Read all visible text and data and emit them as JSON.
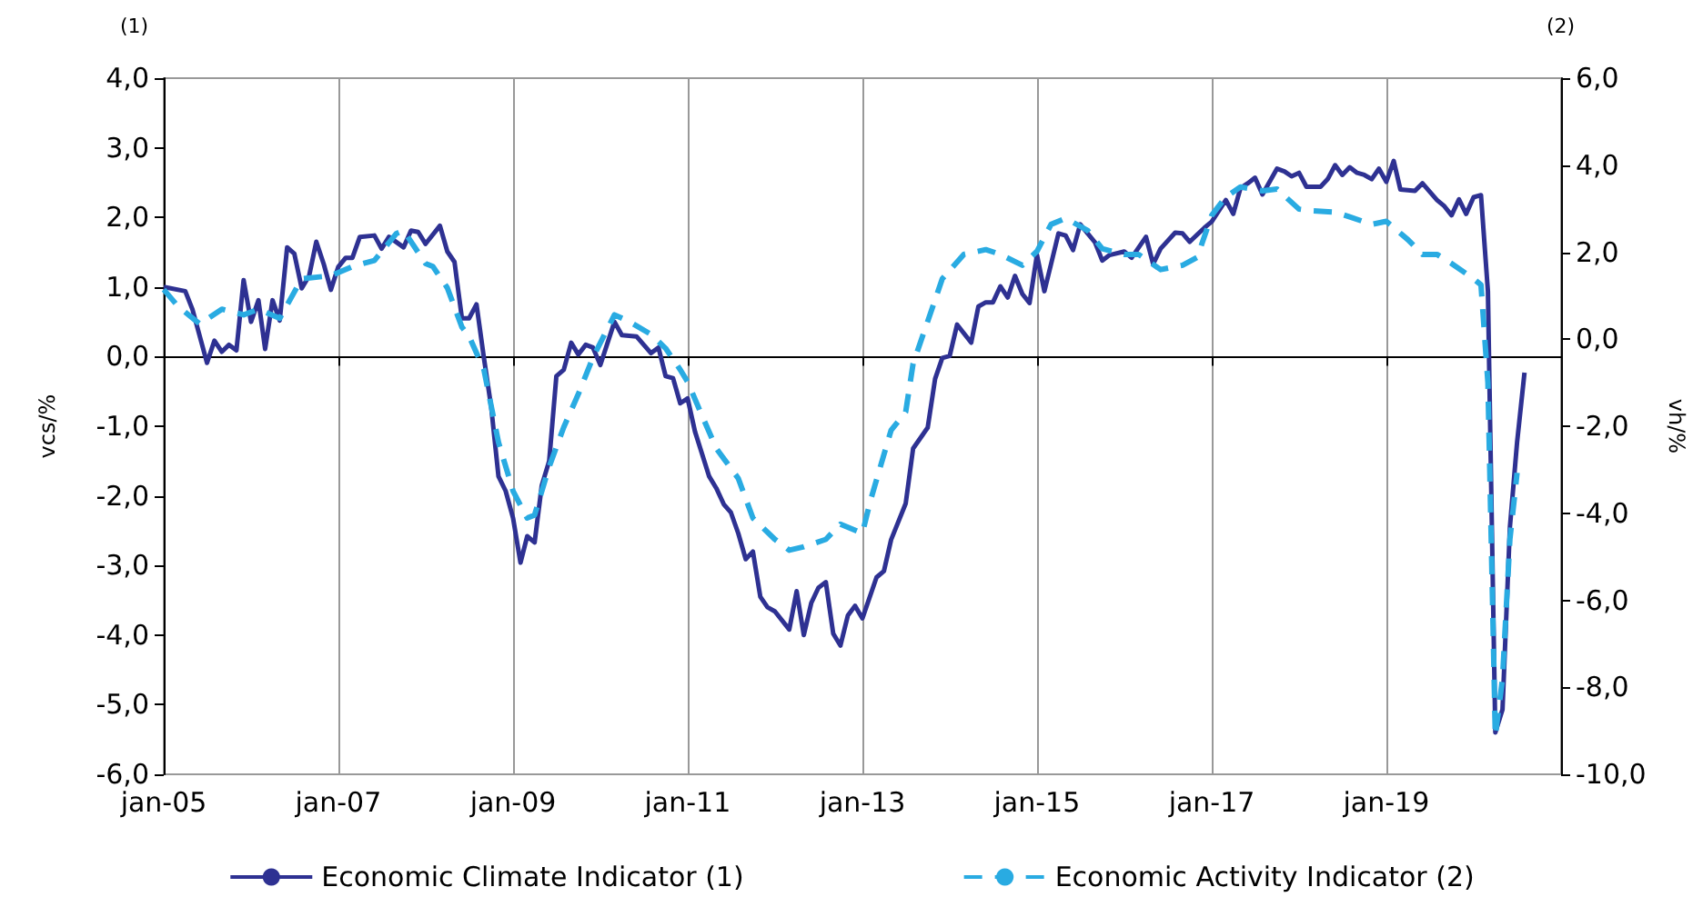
{
  "chart_data": {
    "type": "line",
    "ylabel": "vcs/%",
    "y2label": "vh/%",
    "annotations": [
      "(1)",
      "(2)"
    ],
    "xlim": [
      "2005-01",
      "2021-01"
    ],
    "xticks": [
      {
        "value": "2005-01",
        "label": "jan-05"
      },
      {
        "value": "2007-01",
        "label": "jan-07"
      },
      {
        "value": "2009-01",
        "label": "jan-09"
      },
      {
        "value": "2011-01",
        "label": "jan-11"
      },
      {
        "value": "2013-01",
        "label": "jan-13"
      },
      {
        "value": "2015-01",
        "label": "jan-15"
      },
      {
        "value": "2017-01",
        "label": "jan-17"
      },
      {
        "value": "2019-01",
        "label": "jan-19"
      }
    ],
    "ylim": [
      -6,
      4
    ],
    "yticks": [
      {
        "value": -6,
        "label": "-6,0"
      },
      {
        "value": -5,
        "label": "-5,0"
      },
      {
        "value": -4,
        "label": "-4,0"
      },
      {
        "value": -3,
        "label": "-3,0"
      },
      {
        "value": -2,
        "label": "-2,0"
      },
      {
        "value": -1,
        "label": "-1,0"
      },
      {
        "value": 0,
        "label": "0,0"
      },
      {
        "value": 1,
        "label": "1,0"
      },
      {
        "value": 2,
        "label": "2,0"
      },
      {
        "value": 3,
        "label": "3,0"
      },
      {
        "value": 4,
        "label": "4,0"
      }
    ],
    "y2lim": [
      -10,
      6
    ],
    "y2ticks": [
      {
        "value": -10,
        "label": "-10,0"
      },
      {
        "value": -8,
        "label": "-8,0"
      },
      {
        "value": -6,
        "label": "-6,0"
      },
      {
        "value": -4,
        "label": "-4,0"
      },
      {
        "value": -2,
        "label": "-2,0"
      },
      {
        "value": 0,
        "label": "0,0"
      },
      {
        "value": 2,
        "label": "2,0"
      },
      {
        "value": 4,
        "label": "4,0"
      },
      {
        "value": 6,
        "label": "6,0"
      }
    ],
    "grid": "x",
    "legend": "bottom",
    "marker": "none",
    "series": [
      {
        "name": "Economic Climate Indicator (1)",
        "color": "#2e3192",
        "line_style": "solid",
        "axis": "y",
        "x": [
          "2005-01",
          "2005-04",
          "2005-05",
          "2005-07",
          "2005-08",
          "2005-09",
          "2005-10",
          "2005-11",
          "2005-12",
          "2006-01",
          "2006-02",
          "2006-03",
          "2006-04",
          "2006-05",
          "2006-06",
          "2006-07",
          "2006-08",
          "2006-09",
          "2006-10",
          "2006-11",
          "2006-12",
          "2007-01",
          "2007-02",
          "2007-03",
          "2007-04",
          "2007-06",
          "2007-07",
          "2007-08",
          "2007-10",
          "2007-11",
          "2007-12",
          "2008-01",
          "2008-03",
          "2008-04",
          "2008-05",
          "2008-06",
          "2008-07",
          "2008-08",
          "2008-09",
          "2008-10",
          "2008-11",
          "2008-12",
          "2009-01",
          "2009-02",
          "2009-03",
          "2009-04",
          "2009-05",
          "2009-06",
          "2009-07",
          "2009-08",
          "2009-09",
          "2009-10",
          "2009-11",
          "2009-12",
          "2010-01",
          "2010-03",
          "2010-04",
          "2010-06",
          "2010-08",
          "2010-09",
          "2010-10",
          "2010-11",
          "2010-12",
          "2011-01",
          "2011-02",
          "2011-04",
          "2011-05",
          "2011-06",
          "2011-07",
          "2011-08",
          "2011-09",
          "2011-10",
          "2011-11",
          "2011-12",
          "2012-01",
          "2012-03",
          "2012-04",
          "2012-05",
          "2012-06",
          "2012-07",
          "2012-08",
          "2012-09",
          "2012-10",
          "2012-11",
          "2012-12",
          "2013-01",
          "2013-03",
          "2013-04",
          "2013-05",
          "2013-07",
          "2013-08",
          "2013-10",
          "2013-11",
          "2013-12",
          "2014-01",
          "2014-02",
          "2014-04",
          "2014-05",
          "2014-06",
          "2014-07",
          "2014-08",
          "2014-09",
          "2014-10",
          "2014-11",
          "2014-12",
          "2015-01",
          "2015-02",
          "2015-03",
          "2015-04",
          "2015-05",
          "2015-06",
          "2015-07",
          "2015-08",
          "2015-09",
          "2015-10",
          "2015-11",
          "2016-01",
          "2016-02",
          "2016-04",
          "2016-05",
          "2016-06",
          "2016-08",
          "2016-09",
          "2016-10",
          "2016-12",
          "2017-01",
          "2017-03",
          "2017-04",
          "2017-05",
          "2017-06",
          "2017-07",
          "2017-08",
          "2017-10",
          "2017-11",
          "2017-12",
          "2018-01",
          "2018-02",
          "2018-04",
          "2018-05",
          "2018-06",
          "2018-07",
          "2018-08",
          "2018-09",
          "2018-10",
          "2018-11",
          "2018-12",
          "2019-01",
          "2019-02",
          "2019-03",
          "2019-05",
          "2019-06",
          "2019-08",
          "2019-09",
          "2019-10",
          "2019-11",
          "2019-12",
          "2020-01",
          "2020-02",
          "2020-03",
          "2020-04",
          "2020-05",
          "2020-06",
          "2020-07",
          "2020-08"
        ],
        "values": [
          1.0,
          0.94,
          0.68,
          -0.09,
          0.23,
          0.07,
          0.17,
          0.09,
          1.1,
          0.5,
          0.81,
          0.11,
          0.81,
          0.52,
          1.57,
          1.48,
          0.98,
          1.16,
          1.65,
          1.33,
          0.96,
          1.29,
          1.42,
          1.42,
          1.72,
          1.74,
          1.55,
          1.72,
          1.57,
          1.81,
          1.79,
          1.62,
          1.88,
          1.51,
          1.36,
          0.55,
          0.55,
          0.75,
          -0.02,
          -0.71,
          -1.72,
          -1.93,
          -2.32,
          -2.96,
          -2.58,
          -2.67,
          -1.85,
          -1.5,
          -0.28,
          -0.19,
          0.2,
          0.03,
          0.17,
          0.13,
          -0.12,
          0.5,
          0.31,
          0.29,
          0.05,
          0.13,
          -0.28,
          -0.31,
          -0.67,
          -0.6,
          -1.08,
          -1.72,
          -1.89,
          -2.12,
          -2.24,
          -2.54,
          -2.91,
          -2.8,
          -3.45,
          -3.6,
          -3.66,
          -3.92,
          -3.37,
          -4.0,
          -3.54,
          -3.32,
          -3.24,
          -3.98,
          -4.15,
          -3.72,
          -3.58,
          -3.76,
          -3.17,
          -3.08,
          -2.63,
          -2.11,
          -1.32,
          -1.02,
          -0.32,
          -0.02,
          0.01,
          0.46,
          0.2,
          0.72,
          0.78,
          0.78,
          1.01,
          0.85,
          1.16,
          0.9,
          0.77,
          1.46,
          0.94,
          1.33,
          1.77,
          1.74,
          1.53,
          1.9,
          1.77,
          1.64,
          1.38,
          1.46,
          1.51,
          1.42,
          1.72,
          1.33,
          1.55,
          1.78,
          1.77,
          1.65,
          1.85,
          1.94,
          2.25,
          2.05,
          2.42,
          2.49,
          2.57,
          2.33,
          2.7,
          2.66,
          2.59,
          2.64,
          2.44,
          2.44,
          2.55,
          2.75,
          2.61,
          2.72,
          2.64,
          2.61,
          2.55,
          2.7,
          2.51,
          2.81,
          2.4,
          2.38,
          2.49,
          2.25,
          2.16,
          2.03,
          2.26,
          2.05,
          2.29,
          2.32,
          0.94,
          -5.4,
          -5.07,
          -2.45,
          -1.23,
          -0.23
        ]
      },
      {
        "name": "Economic Activity Indicator (2)",
        "color": "#29abe2",
        "line_style": "dashed",
        "axis": "y2",
        "x": [
          "2005-01",
          "2005-03",
          "2005-06",
          "2005-09",
          "2005-12",
          "2006-02",
          "2006-05",
          "2006-08",
          "2006-12",
          "2007-03",
          "2007-06",
          "2007-09",
          "2007-10",
          "2008-01",
          "2008-02",
          "2008-04",
          "2008-06",
          "2008-07",
          "2008-09",
          "2008-11",
          "2009-01",
          "2009-03",
          "2009-04",
          "2009-06",
          "2009-08",
          "2009-10",
          "2009-12",
          "2010-03",
          "2010-05",
          "2010-08",
          "2010-10",
          "2010-12",
          "2011-01",
          "2011-03",
          "2011-05",
          "2011-08",
          "2011-10",
          "2012-01",
          "2012-03",
          "2012-05",
          "2012-08",
          "2012-10",
          "2013-01",
          "2013-02",
          "2013-04",
          "2013-05",
          "2013-07",
          "2013-08",
          "2013-10",
          "2013-12",
          "2014-03",
          "2014-06",
          "2014-08",
          "2014-11",
          "2015-01",
          "2015-03",
          "2015-05",
          "2015-08",
          "2015-10",
          "2016-01",
          "2016-03",
          "2016-06",
          "2016-09",
          "2016-11",
          "2017-01",
          "2017-03",
          "2017-05",
          "2017-08",
          "2017-10",
          "2018-01",
          "2018-03",
          "2018-06",
          "2018-08",
          "2018-11",
          "2019-01",
          "2019-04",
          "2019-06",
          "2019-08",
          "2019-10",
          "2020-01",
          "2020-02",
          "2020-03",
          "2020-04",
          "2020-05",
          "2020-06",
          "2020-07"
        ],
        "values": [
          1.14,
          0.76,
          0.35,
          0.69,
          0.56,
          0.69,
          0.48,
          1.39,
          1.46,
          1.67,
          1.81,
          2.43,
          2.5,
          1.74,
          1.67,
          1.18,
          0.28,
          0.07,
          -0.7,
          -2.37,
          -3.49,
          -4.11,
          -4.04,
          -2.93,
          -2.02,
          -1.26,
          -0.42,
          0.56,
          0.41,
          0.11,
          -0.21,
          -0.7,
          -0.98,
          -1.74,
          -2.51,
          -3.2,
          -4.11,
          -4.6,
          -4.85,
          -4.77,
          -4.6,
          -4.25,
          -4.46,
          -3.76,
          -2.65,
          -2.09,
          -1.67,
          -0.56,
          0.41,
          1.39,
          1.95,
          2.06,
          1.95,
          1.7,
          2.02,
          2.64,
          2.78,
          2.5,
          2.08,
          1.95,
          1.95,
          1.6,
          1.7,
          1.88,
          2.85,
          3.27,
          3.5,
          3.41,
          3.45,
          2.99,
          2.95,
          2.92,
          2.81,
          2.64,
          2.71,
          2.29,
          1.95,
          1.95,
          1.74,
          1.39,
          1.25,
          -1.0,
          -9.12,
          -7.8,
          -4.6,
          -3.07
        ]
      }
    ]
  }
}
